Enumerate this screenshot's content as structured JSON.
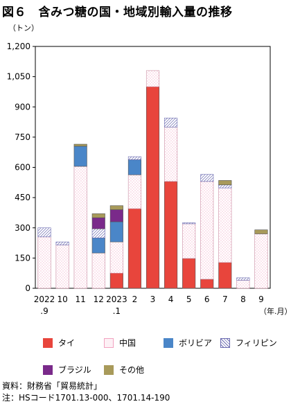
{
  "title": "図６　含みつ糖の国・地域別輸入量の推移",
  "y_unit": "（トン）",
  "x_unit": "（年.月）",
  "source": "資料：財務省「貿易統計」",
  "note": "注：HSコード1701.13-000、1701.14-190",
  "chart_data": {
    "type": "bar",
    "stacked": true,
    "categories": [
      "2022 .9",
      "10",
      "11",
      "12",
      "2023 .1",
      "2",
      "3",
      "4",
      "5",
      "6",
      "7",
      "8",
      "9"
    ],
    "tick_labels": [
      [
        "2022",
        ".9"
      ],
      [
        "10"
      ],
      [
        "11"
      ],
      [
        "12"
      ],
      [
        "2023",
        ".1"
      ],
      [
        "2"
      ],
      [
        "3"
      ],
      [
        "4"
      ],
      [
        "5"
      ],
      [
        "6"
      ],
      [
        "7"
      ],
      [
        "8"
      ],
      [
        "9"
      ]
    ],
    "ylim": [
      0,
      1200
    ],
    "yticks": [
      0,
      150,
      300,
      450,
      600,
      750,
      900,
      1050,
      1200
    ],
    "ytick_labels": [
      "0",
      "150",
      "300",
      "450",
      "600",
      "750",
      "900",
      "1,050",
      "1,200"
    ],
    "grid": false,
    "legend_position": "bottom",
    "series": [
      {
        "name": "タイ",
        "color": "#e8453c",
        "pattern": "solid",
        "values": [
          0,
          0,
          0,
          0,
          75,
          395,
          1000,
          530,
          148,
          45,
          128,
          0,
          0
        ]
      },
      {
        "name": "中国",
        "color": "#f2a2c0",
        "pattern": "dots",
        "values": [
          255,
          215,
          605,
          175,
          155,
          168,
          80,
          270,
          172,
          485,
          370,
          40,
          270
        ]
      },
      {
        "name": "ボリビア",
        "color": "#4a86c8",
        "pattern": "solid",
        "values": [
          0,
          0,
          100,
          75,
          100,
          75,
          0,
          0,
          0,
          0,
          0,
          0,
          0
        ]
      },
      {
        "name": "フィリピン",
        "color": "#6a6ab0",
        "pattern": "hatch",
        "values": [
          45,
          15,
          0,
          45,
          0,
          15,
          0,
          45,
          5,
          35,
          15,
          12,
          0
        ]
      },
      {
        "name": "ブラジル",
        "color": "#7a2a8a",
        "pattern": "solid",
        "values": [
          0,
          0,
          0,
          55,
          60,
          0,
          0,
          0,
          0,
          0,
          0,
          0,
          0
        ]
      },
      {
        "name": "その他",
        "color": "#a89a5a",
        "pattern": "solid",
        "values": [
          0,
          0,
          10,
          20,
          20,
          0,
          0,
          0,
          0,
          0,
          22,
          0,
          20
        ]
      }
    ]
  }
}
